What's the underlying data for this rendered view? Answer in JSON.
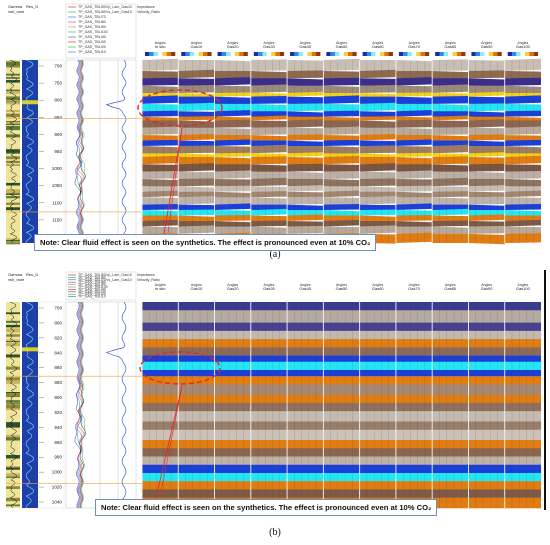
{
  "window_title": "TS_B_T3",
  "well_header": {
    "col1": "Gamma",
    "col2": "Res_D",
    "col3": "vsh_nom",
    "col4": "Vp_Lam_Gas10",
    "col5": "Vs_Lam_Gas10",
    "col6": "Impedance",
    "col7": "Velocity_Ratio"
  },
  "legend_entries": [
    "TP_GAS_TBLI50",
    "TP_GAS_TBLI60",
    "TP_GAS_TBLI70",
    "TP_GAS_TBLI80",
    "TP_GAS_TBLI90",
    "TP_GAS_TBLI100",
    "TP_GAS_TBLI40",
    "TP_GAS_TBLI30",
    "TP_GAS_TBLI20",
    "TP_GAS_TBLI10"
  ],
  "depth_ticks": [
    "700",
    "750",
    "800",
    "850",
    "900",
    "950",
    "1000",
    "1050",
    "1100",
    "1150",
    "1200"
  ],
  "depth_ticks_b": [
    "700",
    "800",
    "820",
    "840",
    "860",
    "880",
    "900",
    "920",
    "940",
    "960",
    "980",
    "1000",
    "1020",
    "1040"
  ],
  "gather_titles_a": [
    "In situ",
    "Gas10",
    "Gas20",
    "Gas30",
    "Gas40",
    "Gas50",
    "Gas60",
    "Gas70",
    "Gas80",
    "Gas90",
    "Gas100"
  ],
  "gather_titles_b": [
    "In situ",
    "Gas10",
    "Gas20",
    "Gas30",
    "Gas40",
    "Gas50",
    "Gas60",
    "Gas70",
    "Gas80",
    "Gas90",
    "Gas100"
  ],
  "gather_axis_label": "Angles",
  "note_text": "Note: Clear fluid effect is seen on the synthetics. The effect is pronounced even at 10% CO₂",
  "caption_a": "(a)",
  "caption_b": "(b)",
  "colors": {
    "blue": "#1b3fd8",
    "cyan": "#24e6f2",
    "yellow": "#f3d214",
    "orange": "#e07c12",
    "brown": "#9b6f4e",
    "grey": "#b7aea6",
    "highlight": "#e0282a"
  }
}
